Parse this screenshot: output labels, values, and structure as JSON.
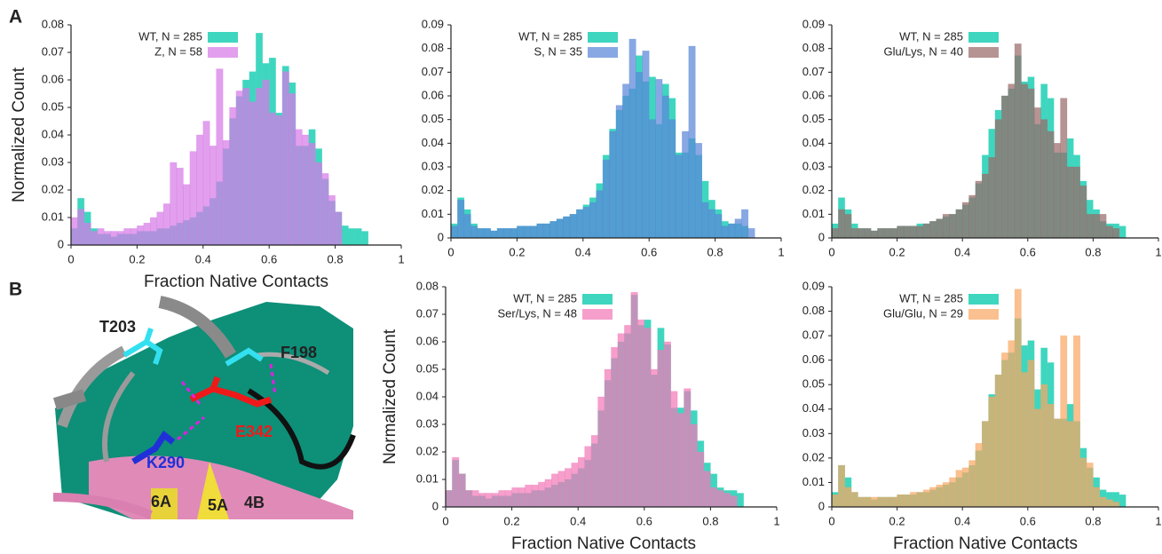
{
  "figure": {
    "panel_labels": [
      "A",
      "B"
    ],
    "structure_labels": [
      "T203",
      "F198",
      "E342",
      "K290",
      "6A",
      "5A",
      "4B"
    ]
  },
  "chart_data": [
    {
      "type": "histogram",
      "bins": [
        0,
        0.02,
        0.04,
        0.06,
        0.08,
        0.1,
        0.12,
        0.14,
        0.16,
        0.18,
        0.2,
        0.22,
        0.24,
        0.26,
        0.28,
        0.3,
        0.32,
        0.34,
        0.36,
        0.38,
        0.4,
        0.42,
        0.44,
        0.46,
        0.48,
        0.5,
        0.52,
        0.54,
        0.56,
        0.58,
        0.6,
        0.62,
        0.64,
        0.66,
        0.68,
        0.7,
        0.72,
        0.74,
        0.76,
        0.78,
        0.8,
        0.82,
        0.84,
        0.86,
        0.88,
        0.9,
        0.92
      ],
      "series": [
        {
          "name": "WT, N = 285",
          "color": "#3fd6bf",
          "values": [
            0.006,
            0.017,
            0.012,
            0.006,
            0.004,
            0.004,
            0.003,
            0.004,
            0.004,
            0.004,
            0.005,
            0.005,
            0.005,
            0.006,
            0.006,
            0.007,
            0.008,
            0.009,
            0.01,
            0.012,
            0.014,
            0.017,
            0.023,
            0.035,
            0.046,
            0.054,
            0.06,
            0.063,
            0.077,
            0.066,
            0.068,
            0.048,
            0.065,
            0.059,
            0.036,
            0.036,
            0.042,
            0.035,
            0.024,
            0.016,
            0.012,
            0.007,
            0.006,
            0.006,
            0.005,
            0
          ]
        },
        {
          "name": "Z, N = 58",
          "color": "#d77ae8",
          "values": [
            0.01,
            0.013,
            0.008,
            0.005,
            0.006,
            0.005,
            0.005,
            0.005,
            0.006,
            0.006,
            0.007,
            0.008,
            0.01,
            0.012,
            0.015,
            0.03,
            0.028,
            0.022,
            0.034,
            0.04,
            0.045,
            0.036,
            0.064,
            0.038,
            0.05,
            0.056,
            0.057,
            0.052,
            0.057,
            0.06,
            0.048,
            0.047,
            0.063,
            0.055,
            0.042,
            0.04,
            0.037,
            0.03,
            0.026,
            0.018,
            0.012,
            0,
            0,
            0,
            0,
            0
          ]
        }
      ],
      "xlim": [
        0,
        1
      ],
      "xticks": [
        0,
        0.2,
        0.4,
        0.6,
        0.8,
        1
      ],
      "ylim": [
        0,
        0.08
      ],
      "yticks": [
        0,
        0.01,
        0.02,
        0.03,
        0.04,
        0.05,
        0.06,
        0.07,
        0.08
      ],
      "x_label": "Fraction Native Contacts",
      "y_label": "Normalized Count"
    },
    {
      "type": "histogram",
      "bins": [
        0,
        0.02,
        0.04,
        0.06,
        0.08,
        0.1,
        0.12,
        0.14,
        0.16,
        0.18,
        0.2,
        0.22,
        0.24,
        0.26,
        0.28,
        0.3,
        0.32,
        0.34,
        0.36,
        0.38,
        0.4,
        0.42,
        0.44,
        0.46,
        0.48,
        0.5,
        0.52,
        0.54,
        0.56,
        0.58,
        0.6,
        0.62,
        0.64,
        0.66,
        0.68,
        0.7,
        0.72,
        0.74,
        0.76,
        0.78,
        0.8,
        0.82,
        0.84,
        0.86,
        0.88,
        0.9,
        0.92
      ],
      "series": [
        {
          "name": "WT, N = 285",
          "color": "#3fd6bf",
          "values": [
            0.006,
            0.017,
            0.012,
            0.006,
            0.004,
            0.004,
            0.003,
            0.004,
            0.004,
            0.004,
            0.005,
            0.005,
            0.005,
            0.006,
            0.006,
            0.007,
            0.008,
            0.009,
            0.01,
            0.012,
            0.014,
            0.017,
            0.023,
            0.035,
            0.046,
            0.054,
            0.06,
            0.063,
            0.077,
            0.066,
            0.068,
            0.048,
            0.065,
            0.059,
            0.036,
            0.036,
            0.042,
            0.035,
            0.024,
            0.016,
            0.012,
            0.007,
            0.006,
            0.006,
            0.005,
            0
          ]
        },
        {
          "name": "S, N = 35",
          "color": "#5a86d8",
          "values": [
            0.005,
            0.016,
            0.01,
            0.005,
            0.004,
            0.004,
            0.003,
            0.004,
            0.004,
            0.004,
            0.005,
            0.005,
            0.005,
            0.006,
            0.006,
            0.007,
            0.008,
            0.009,
            0.01,
            0.012,
            0.013,
            0.015,
            0.02,
            0.033,
            0.045,
            0.056,
            0.065,
            0.084,
            0.07,
            0.079,
            0.05,
            0.067,
            0.06,
            0.05,
            0.035,
            0.045,
            0.081,
            0.04,
            0.015,
            0.012,
            0.01,
            0.005,
            0.006,
            0.008,
            0.012,
            0.004
          ]
        }
      ],
      "xlim": [
        0,
        1
      ],
      "xticks": [
        0,
        0.2,
        0.4,
        0.6,
        0.8,
        1
      ],
      "ylim": [
        0,
        0.09
      ],
      "yticks": [
        0,
        0.01,
        0.02,
        0.03,
        0.04,
        0.05,
        0.06,
        0.07,
        0.08,
        0.09
      ]
    },
    {
      "type": "histogram",
      "bins": [
        0,
        0.02,
        0.04,
        0.06,
        0.08,
        0.1,
        0.12,
        0.14,
        0.16,
        0.18,
        0.2,
        0.22,
        0.24,
        0.26,
        0.28,
        0.3,
        0.32,
        0.34,
        0.36,
        0.38,
        0.4,
        0.42,
        0.44,
        0.46,
        0.48,
        0.5,
        0.52,
        0.54,
        0.56,
        0.58,
        0.6,
        0.62,
        0.64,
        0.66,
        0.68,
        0.7,
        0.72,
        0.74,
        0.76,
        0.78,
        0.8,
        0.82,
        0.84,
        0.86,
        0.88,
        0.9,
        0.92
      ],
      "series": [
        {
          "name": "WT, N = 285",
          "color": "#3fd6bf",
          "values": [
            0.006,
            0.017,
            0.012,
            0.006,
            0.004,
            0.004,
            0.003,
            0.004,
            0.004,
            0.004,
            0.005,
            0.005,
            0.005,
            0.006,
            0.006,
            0.007,
            0.008,
            0.009,
            0.01,
            0.012,
            0.014,
            0.017,
            0.023,
            0.035,
            0.046,
            0.054,
            0.06,
            0.063,
            0.077,
            0.066,
            0.068,
            0.048,
            0.065,
            0.059,
            0.036,
            0.036,
            0.042,
            0.035,
            0.024,
            0.016,
            0.012,
            0.007,
            0.006,
            0.006,
            0.005,
            0
          ]
        },
        {
          "name": "Glu/Lys, N = 40",
          "color": "#9a6b6a",
          "values": [
            0.004,
            0.012,
            0.01,
            0.004,
            0.004,
            0.004,
            0.003,
            0.004,
            0.004,
            0.004,
            0.005,
            0.005,
            0.005,
            0.005,
            0.006,
            0.007,
            0.008,
            0.01,
            0.01,
            0.012,
            0.015,
            0.018,
            0.024,
            0.027,
            0.034,
            0.05,
            0.06,
            0.065,
            0.082,
            0.065,
            0.063,
            0.055,
            0.05,
            0.045,
            0.04,
            0.059,
            0.03,
            0.03,
            0.022,
            0.01,
            0.01,
            0.01,
            0.005,
            0.004,
            0,
            0
          ]
        }
      ],
      "xlim": [
        0,
        1
      ],
      "xticks": [
        0,
        0.2,
        0.4,
        0.6,
        0.8,
        1
      ],
      "ylim": [
        0,
        0.09
      ],
      "yticks": [
        0,
        0.01,
        0.02,
        0.03,
        0.04,
        0.05,
        0.06,
        0.07,
        0.08,
        0.09
      ]
    },
    {
      "type": "histogram",
      "bins": [
        0,
        0.02,
        0.04,
        0.06,
        0.08,
        0.1,
        0.12,
        0.14,
        0.16,
        0.18,
        0.2,
        0.22,
        0.24,
        0.26,
        0.28,
        0.3,
        0.32,
        0.34,
        0.36,
        0.38,
        0.4,
        0.42,
        0.44,
        0.46,
        0.48,
        0.5,
        0.52,
        0.54,
        0.56,
        0.58,
        0.6,
        0.62,
        0.64,
        0.66,
        0.68,
        0.7,
        0.72,
        0.74,
        0.76,
        0.78,
        0.8,
        0.82,
        0.84,
        0.86,
        0.88,
        0.9,
        0.92
      ],
      "series": [
        {
          "name": "WT, N = 285",
          "color": "#3fd6bf",
          "values": [
            0.006,
            0.017,
            0.012,
            0.006,
            0.004,
            0.004,
            0.003,
            0.004,
            0.004,
            0.004,
            0.005,
            0.005,
            0.005,
            0.006,
            0.006,
            0.007,
            0.008,
            0.009,
            0.01,
            0.012,
            0.014,
            0.017,
            0.023,
            0.035,
            0.046,
            0.054,
            0.06,
            0.063,
            0.077,
            0.066,
            0.068,
            0.048,
            0.065,
            0.059,
            0.036,
            0.036,
            0.042,
            0.035,
            0.024,
            0.016,
            0.012,
            0.007,
            0.006,
            0.006,
            0.005,
            0
          ]
        },
        {
          "name": "Ser/Lys, N = 48",
          "color": "#f27ab8",
          "values": [
            0.006,
            0.018,
            0.012,
            0.006,
            0.006,
            0.005,
            0.005,
            0.005,
            0.006,
            0.006,
            0.007,
            0.007,
            0.008,
            0.008,
            0.009,
            0.01,
            0.012,
            0.013,
            0.014,
            0.016,
            0.018,
            0.022,
            0.026,
            0.04,
            0.05,
            0.058,
            0.063,
            0.066,
            0.078,
            0.068,
            0.065,
            0.05,
            0.057,
            0.06,
            0.042,
            0.034,
            0.043,
            0.03,
            0.02,
            0.013,
            0.007,
            0.006,
            0.005,
            0.004,
            0,
            0
          ]
        }
      ],
      "xlim": [
        0,
        1
      ],
      "xticks": [
        0,
        0.2,
        0.4,
        0.6,
        0.8,
        1
      ],
      "ylim": [
        0,
        0.08
      ],
      "yticks": [
        0,
        0.01,
        0.02,
        0.03,
        0.04,
        0.05,
        0.06,
        0.07,
        0.08
      ],
      "x_label": "Fraction Native Contacts",
      "y_label": "Normalized Count"
    },
    {
      "type": "histogram",
      "bins": [
        0,
        0.02,
        0.04,
        0.06,
        0.08,
        0.1,
        0.12,
        0.14,
        0.16,
        0.18,
        0.2,
        0.22,
        0.24,
        0.26,
        0.28,
        0.3,
        0.32,
        0.34,
        0.36,
        0.38,
        0.4,
        0.42,
        0.44,
        0.46,
        0.48,
        0.5,
        0.52,
        0.54,
        0.56,
        0.58,
        0.6,
        0.62,
        0.64,
        0.66,
        0.68,
        0.7,
        0.72,
        0.74,
        0.76,
        0.78,
        0.8,
        0.82,
        0.84,
        0.86,
        0.88,
        0.9,
        0.92
      ],
      "series": [
        {
          "name": "WT, N = 285",
          "color": "#3fd6bf",
          "values": [
            0.006,
            0.017,
            0.012,
            0.006,
            0.004,
            0.004,
            0.003,
            0.004,
            0.004,
            0.004,
            0.005,
            0.005,
            0.005,
            0.006,
            0.006,
            0.007,
            0.008,
            0.009,
            0.01,
            0.012,
            0.014,
            0.017,
            0.023,
            0.035,
            0.046,
            0.054,
            0.06,
            0.063,
            0.077,
            0.066,
            0.068,
            0.048,
            0.065,
            0.059,
            0.036,
            0.036,
            0.042,
            0.035,
            0.024,
            0.016,
            0.012,
            0.007,
            0.006,
            0.006,
            0.005,
            0
          ]
        },
        {
          "name": "Glu/Glu, N = 29",
          "color": "#f8a864",
          "values": [
            0.005,
            0.017,
            0.008,
            0.006,
            0.004,
            0.004,
            0.004,
            0.004,
            0.004,
            0.004,
            0.005,
            0.005,
            0.006,
            0.006,
            0.007,
            0.008,
            0.009,
            0.01,
            0.012,
            0.015,
            0.016,
            0.019,
            0.026,
            0.035,
            0.045,
            0.054,
            0.063,
            0.068,
            0.089,
            0.055,
            0.06,
            0.04,
            0.05,
            0.042,
            0.036,
            0.07,
            0.035,
            0.07,
            0.02,
            0.018,
            0.008,
            0.004,
            0.003,
            0.002,
            0,
            0
          ]
        }
      ],
      "xlim": [
        0,
        1
      ],
      "xticks": [
        0,
        0.2,
        0.4,
        0.6,
        0.8,
        1
      ],
      "ylim": [
        0,
        0.09
      ],
      "yticks": [
        0,
        0.01,
        0.02,
        0.03,
        0.04,
        0.05,
        0.06,
        0.07,
        0.08,
        0.09
      ],
      "x_label": "Fraction Native Contacts"
    }
  ]
}
